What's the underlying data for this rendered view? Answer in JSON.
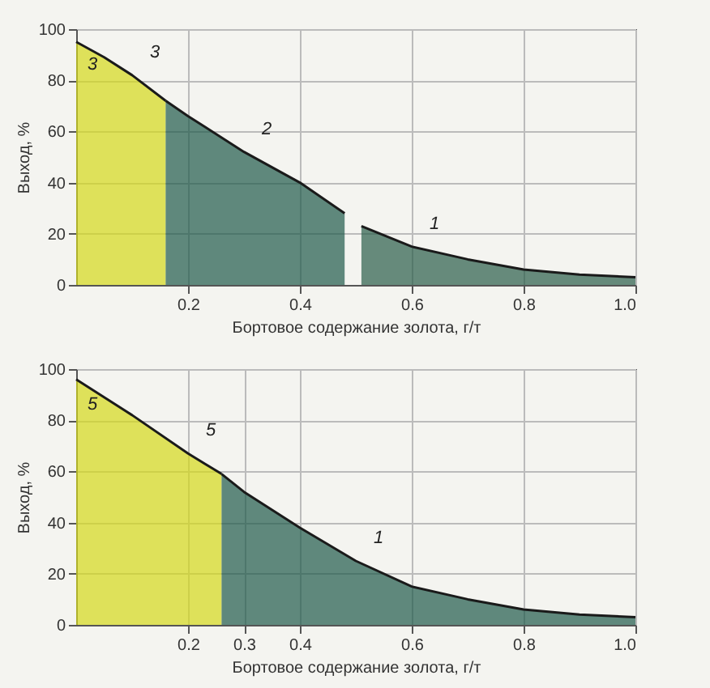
{
  "chart_data": [
    {
      "type": "area",
      "xlabel": "Бортовое содержание золота, г/т",
      "ylabel": "Выход, %",
      "xlim": [
        0,
        1
      ],
      "xticks": [
        0.2,
        0.4,
        0.6,
        0.8,
        {
          "value": 1,
          "label": "1.0"
        }
      ],
      "ylim": [
        0,
        100
      ],
      "yticks": [
        0,
        20,
        40,
        60,
        80,
        100
      ],
      "grid": true,
      "series": [
        {
          "color": "#d4d81a",
          "x": [
            0,
            0.05,
            0.1,
            0.16
          ],
          "values": [
            95,
            89,
            82,
            72
          ]
        },
        {
          "color": "#1f5a4a",
          "x": [
            0.16,
            0.2,
            0.3,
            0.4,
            0.48
          ],
          "values": [
            72,
            66,
            52,
            40,
            28
          ]
        },
        {
          "color": "#2a5c48",
          "x": [
            0.51,
            0.6,
            0.7,
            0.8,
            0.9,
            1.0
          ],
          "values": [
            23,
            15,
            10,
            6,
            4,
            3
          ]
        }
      ],
      "annotations": [
        "3",
        {
          "text": "3",
          "x": 0.1,
          "y": 82
        },
        {
          "text": "2",
          "x": 0.3,
          "y": 52
        },
        {
          "text": "1",
          "x": 0.6,
          "y": 15
        }
      ]
    },
    {
      "type": "area",
      "xlabel": "Бортовое содержание золота, г/т",
      "ylabel": "Выход, %",
      "xlim": [
        0,
        1
      ],
      "xticks": [
        0.2,
        0.3,
        0.4,
        0.6,
        0.8,
        {
          "value": 1,
          "label": "1.0"
        }
      ],
      "ylim": [
        0,
        100
      ],
      "yticks": [
        0,
        20,
        40,
        60,
        80,
        100
      ],
      "grid": true,
      "series": [
        {
          "color": "#d4d81a",
          "x": [
            0,
            0.1,
            0.2,
            0.26
          ],
          "values": [
            96,
            82,
            67,
            59
          ]
        },
        {
          "color": "#1f5a4a",
          "x": [
            0.26,
            0.3,
            0.4,
            0.5,
            0.6,
            0.7,
            0.8,
            0.9,
            1.0
          ],
          "values": [
            59,
            52,
            38,
            25,
            15,
            10,
            6,
            4,
            3
          ]
        }
      ],
      "annotations": [
        "5",
        {
          "text": "5",
          "x": 0.2,
          "y": 67
        },
        {
          "text": "1",
          "x": 0.5,
          "y": 25
        }
      ]
    }
  ]
}
